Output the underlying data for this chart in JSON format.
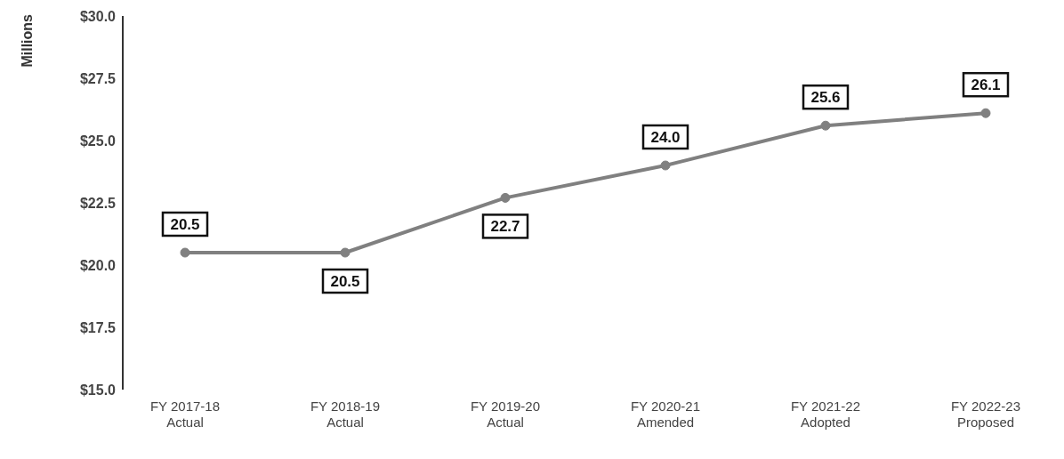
{
  "chart_data": {
    "type": "line",
    "ylabel": "Millions",
    "categories": [
      "FY 2017-18\nActual",
      "FY 2018-19\nActual",
      "FY 2019-20\nActual",
      "FY 2020-21\nAmended",
      "FY 2021-22\nAdopted",
      "FY 2022-23\nProposed"
    ],
    "series": [
      {
        "color": "#808080",
        "values": [
          20.5,
          20.5,
          22.7,
          24.0,
          25.6,
          26.1
        ]
      }
    ],
    "value_labels": [
      "20.5",
      "20.5",
      "22.7",
      "24.0",
      "25.6",
      "26.1"
    ],
    "ylim": [
      15,
      30
    ],
    "yticks": [
      {
        "value": 15,
        "label": "$15.0"
      },
      {
        "value": 17.5,
        "label": "$17.5"
      },
      {
        "value": 20,
        "label": "$20.0"
      },
      {
        "value": 22.5,
        "label": "$22.5"
      },
      {
        "value": 25,
        "label": "$25.0"
      },
      {
        "value": 27.5,
        "label": "$27.5"
      },
      {
        "value": 30,
        "label": "$30.0"
      }
    ],
    "marker": "circle",
    "legend": false
  }
}
